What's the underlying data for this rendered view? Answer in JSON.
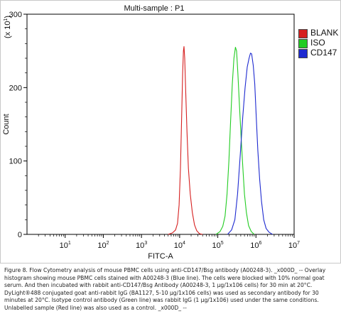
{
  "chart_data": {
    "type": "line",
    "title": "Multi-sample : P1",
    "xlabel": "FITC-A",
    "ylabel": "Count",
    "y_scale_note": "(x 10",
    "y_scale_exp": "1",
    "y_scale_close": ")",
    "x_scale": "log",
    "xlim": [
      1,
      10000000
    ],
    "ylim": [
      0,
      300
    ],
    "x_tick_base": "10",
    "x_tick_exponents": [
      "1",
      "2",
      "3",
      "4",
      "5",
      "6",
      "7"
    ],
    "y_ticks": [
      "0",
      "100",
      "200",
      "300"
    ],
    "legend_placement": "right",
    "series": [
      {
        "name": "BLANK",
        "color": "#d62020",
        "points": [
          [
            5000,
            0
          ],
          [
            6500,
            2
          ],
          [
            7800,
            6
          ],
          [
            8800,
            15
          ],
          [
            9700,
            40
          ],
          [
            10500,
            90
          ],
          [
            11300,
            160
          ],
          [
            12000,
            220
          ],
          [
            12600,
            250
          ],
          [
            13000,
            256
          ],
          [
            13600,
            240
          ],
          [
            14400,
            195
          ],
          [
            15600,
            140
          ],
          [
            17000,
            90
          ],
          [
            19000,
            55
          ],
          [
            21500,
            30
          ],
          [
            24500,
            13
          ],
          [
            28000,
            5
          ],
          [
            33000,
            1
          ],
          [
            40000,
            0
          ]
        ]
      },
      {
        "name": "ISO",
        "color": "#22cc22",
        "points": [
          [
            90000,
            0
          ],
          [
            115000,
            4
          ],
          [
            135000,
            11
          ],
          [
            155000,
            25
          ],
          [
            175000,
            55
          ],
          [
            195000,
            100
          ],
          [
            215000,
            150
          ],
          [
            240000,
            205
          ],
          [
            265000,
            240
          ],
          [
            290000,
            255
          ],
          [
            310000,
            250
          ],
          [
            335000,
            220
          ],
          [
            370000,
            175
          ],
          [
            410000,
            130
          ],
          [
            455000,
            90
          ],
          [
            500000,
            55
          ],
          [
            560000,
            30
          ],
          [
            640000,
            12
          ],
          [
            750000,
            4
          ],
          [
            900000,
            0
          ]
        ]
      },
      {
        "name": "CD147",
        "color": "#1e2ad0",
        "points": [
          [
            180000,
            0
          ],
          [
            230000,
            6
          ],
          [
            280000,
            20
          ],
          [
            330000,
            55
          ],
          [
            390000,
            110
          ],
          [
            450000,
            160
          ],
          [
            520000,
            200
          ],
          [
            590000,
            228
          ],
          [
            660000,
            240
          ],
          [
            720000,
            247
          ],
          [
            770000,
            246
          ],
          [
            850000,
            230
          ],
          [
            930000,
            205
          ],
          [
            1020000,
            160
          ],
          [
            1120000,
            115
          ],
          [
            1250000,
            75
          ],
          [
            1400000,
            45
          ],
          [
            1600000,
            20
          ],
          [
            1850000,
            8
          ],
          [
            2200000,
            3
          ],
          [
            2700000,
            0
          ]
        ]
      }
    ]
  },
  "caption": "Figure 8. Flow Cytometry analysis of mouse PBMC cells using anti-CD147/Bsg antibody (A00248-3). _x000D_ -- Overlay histogram showing mouse PBMC cells stained with A00248-3 (Blue line). The cells were blocked with 10% normal goat serum. And then incubated with rabbit anti-CD147/Bsg Antibody (A00248-3, 1 μg/1x106 cells) for 30 min at 20°C. DyLight®488 conjugated goat anti-rabbit IgG (BA1127, 5-10 μg/1x106 cells) was used as secondary antibody for 30 minutes at 20°C. Isotype control antibody (Green line) was rabbit IgG (1 μg/1x106) used under the same conditions. Unlabelled sample (Red line) was also used as a control. _x000D_ --"
}
